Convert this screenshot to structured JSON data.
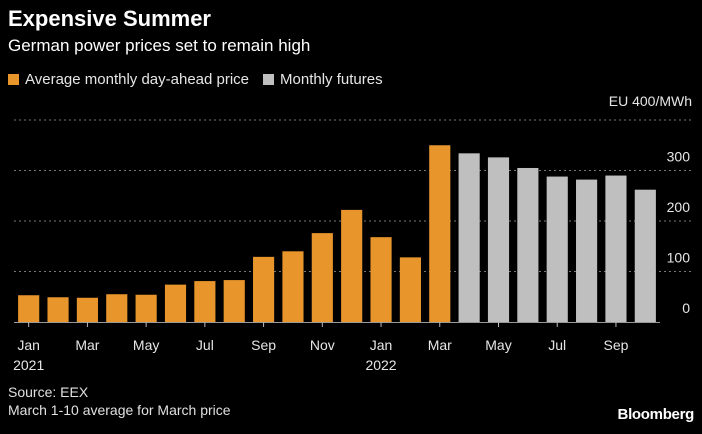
{
  "title": "Expensive Summer",
  "subtitle": "German power prices set to remain high",
  "legend": {
    "actual_label": "Average monthly day-ahead price",
    "futures_label": "Monthly futures"
  },
  "colors": {
    "actual": "#E8952C",
    "futures": "#BFBFBF",
    "grid": "#777777",
    "text": "#E6E6E6"
  },
  "source": "Source: EEX",
  "note": "March 1-10 average for March price",
  "brand": "Bloomberg",
  "chart_data": {
    "type": "bar",
    "title": "Expensive Summer",
    "ylabel": "EU 400/MWh",
    "ylim": [
      0,
      400
    ],
    "yticks": [
      0,
      100,
      200,
      300
    ],
    "ytick_labels": [
      "0",
      "100",
      "200",
      "300"
    ],
    "top_label": "EU 400/MWh",
    "grid": true,
    "categories": [
      "Jan 2021",
      "Feb 2021",
      "Mar 2021",
      "Apr 2021",
      "May 2021",
      "Jun 2021",
      "Jul 2021",
      "Aug 2021",
      "Sep 2021",
      "Oct 2021",
      "Nov 2021",
      "Dec 2021",
      "Jan 2022",
      "Feb 2022",
      "Mar 2022",
      "Apr 2022",
      "May 2022",
      "Jun 2022",
      "Jul 2022",
      "Aug 2022",
      "Sep 2022",
      "Oct 2022"
    ],
    "x_tick_labels": [
      {
        "index": 0,
        "label": "Jan",
        "sub": "2021"
      },
      {
        "index": 2,
        "label": "Mar",
        "sub": ""
      },
      {
        "index": 4,
        "label": "May",
        "sub": ""
      },
      {
        "index": 6,
        "label": "Jul",
        "sub": ""
      },
      {
        "index": 8,
        "label": "Sep",
        "sub": ""
      },
      {
        "index": 10,
        "label": "Nov",
        "sub": ""
      },
      {
        "index": 12,
        "label": "Jan",
        "sub": "2022"
      },
      {
        "index": 14,
        "label": "Mar",
        "sub": ""
      },
      {
        "index": 16,
        "label": "May",
        "sub": ""
      },
      {
        "index": 18,
        "label": "Jul",
        "sub": ""
      },
      {
        "index": 20,
        "label": "Sep",
        "sub": ""
      }
    ],
    "series": [
      {
        "name": "Average monthly day-ahead price",
        "values": [
          53,
          49,
          48,
          55,
          54,
          74,
          81,
          83,
          129,
          140,
          176,
          222,
          168,
          128,
          350,
          null,
          null,
          null,
          null,
          null,
          null,
          null
        ]
      },
      {
        "name": "Monthly futures",
        "values": [
          null,
          null,
          null,
          null,
          null,
          null,
          null,
          null,
          null,
          null,
          null,
          null,
          null,
          null,
          null,
          334,
          326,
          305,
          288,
          282,
          290,
          262
        ]
      }
    ]
  }
}
